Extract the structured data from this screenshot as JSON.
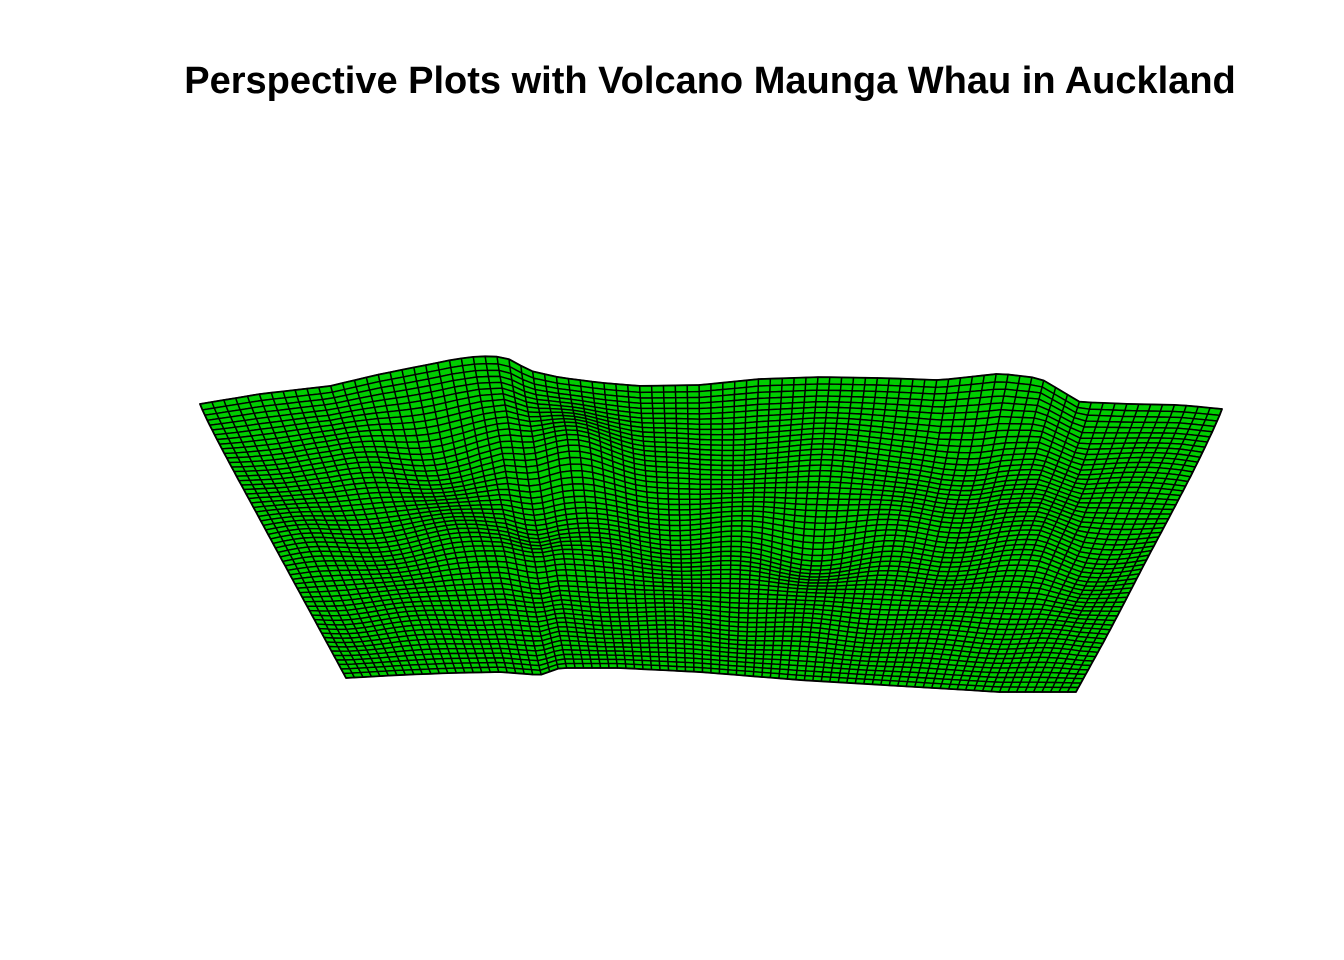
{
  "chart_data": {
    "type": "surface",
    "title": "Perspective Plots with Volcano Maunga Whau in Auckland",
    "xlabel": "",
    "ylabel": "",
    "zlabel": "",
    "axes_drawn": false,
    "box_drawn": false,
    "surface_color": "#00cd00",
    "mesh_color": "#000000",
    "background": "#ffffff",
    "dataset": "volcano",
    "grid_size": [
      87,
      61
    ],
    "z_range": [
      94,
      195
    ]
  }
}
